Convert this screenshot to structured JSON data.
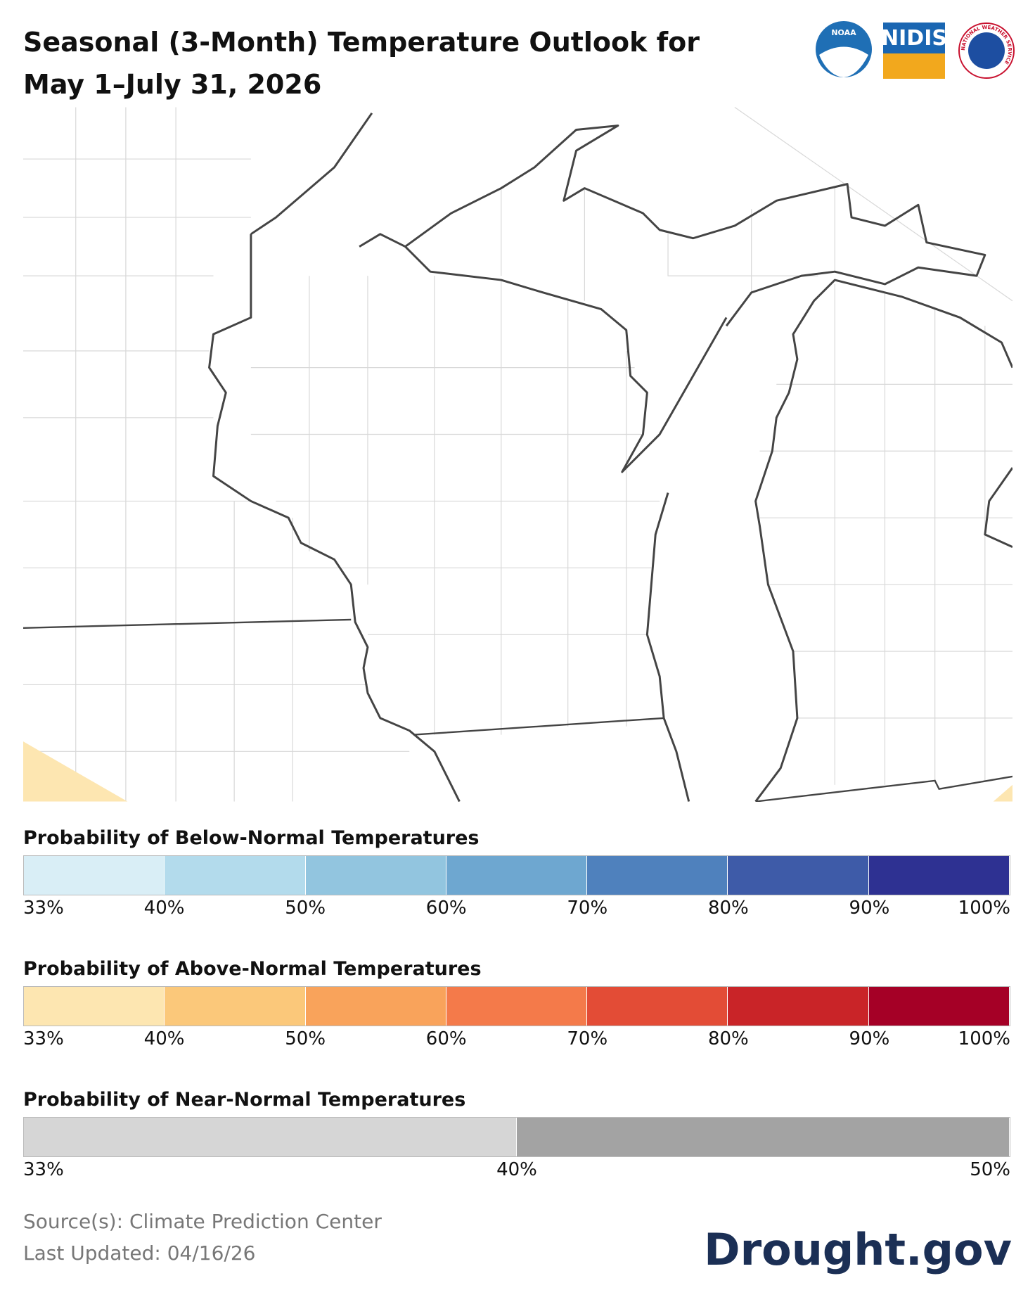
{
  "header": {
    "title": "Seasonal (3-Month) Temperature Outlook for May 1–July 31, 2026",
    "logos": {
      "noaa": "NOAA",
      "nidis": "NIDIS",
      "nws": "NATIONAL WEATHER SERVICE"
    }
  },
  "legends": [
    {
      "title": "Probability of Below-Normal Temperatures",
      "colors": [
        "#d9eef6",
        "#b3dbec",
        "#92c5df",
        "#6ea7d0",
        "#4f81bd",
        "#3e5ba8",
        "#2e3192"
      ],
      "labels": [
        "33%",
        "40%",
        "50%",
        "60%",
        "70%",
        "80%",
        "90%",
        "100%"
      ]
    },
    {
      "title": "Probability of Above-Normal Temperatures",
      "colors": [
        "#fde6b1",
        "#fbc87a",
        "#f9a35b",
        "#f47a4a",
        "#e34c36",
        "#c92428",
        "#a50026"
      ],
      "labels": [
        "33%",
        "40%",
        "50%",
        "60%",
        "70%",
        "80%",
        "90%",
        "100%"
      ]
    },
    {
      "title": "Probability of Near-Normal Temperatures",
      "colors": [
        "#d6d6d6",
        "#a3a3a3"
      ],
      "labels": [
        "33%",
        "40%",
        "50%"
      ]
    }
  ],
  "footer": {
    "source": "Source(s): Climate Prediction Center",
    "updated": "Last Updated: 04/16/26",
    "brand": "Drought.gov"
  }
}
